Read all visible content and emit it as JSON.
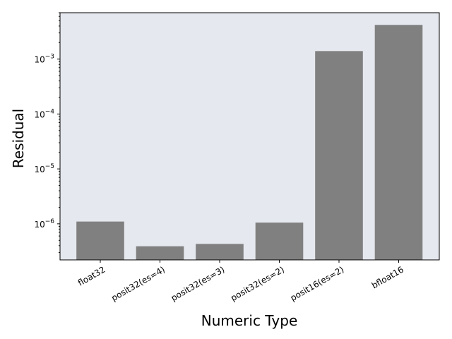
{
  "chart_data": {
    "type": "bar",
    "xlabel": "Numeric Type",
    "ylabel": "Residual",
    "yscale": "log",
    "ylim": [
      2.2e-07,
      0.007
    ],
    "yticks": [
      {
        "value": 1e-06,
        "base": "10",
        "exp": "−6"
      },
      {
        "value": 1e-05,
        "base": "10",
        "exp": "−5"
      },
      {
        "value": 0.0001,
        "base": "10",
        "exp": "−4"
      },
      {
        "value": 0.001,
        "base": "10",
        "exp": "−3"
      }
    ],
    "categories": [
      "float32",
      "posit32(es=4)",
      "posit32(es=3)",
      "posit32(es=2)",
      "posit16(es=2)",
      "bfloat16"
    ],
    "values": [
      1.1e-06,
      3.9e-07,
      4.3e-07,
      1.05e-06,
      0.0014,
      0.0042
    ],
    "grid": false,
    "colors": {
      "bar": "#808080",
      "plot_background": "#e5e8ee",
      "axes": "#000000"
    }
  }
}
